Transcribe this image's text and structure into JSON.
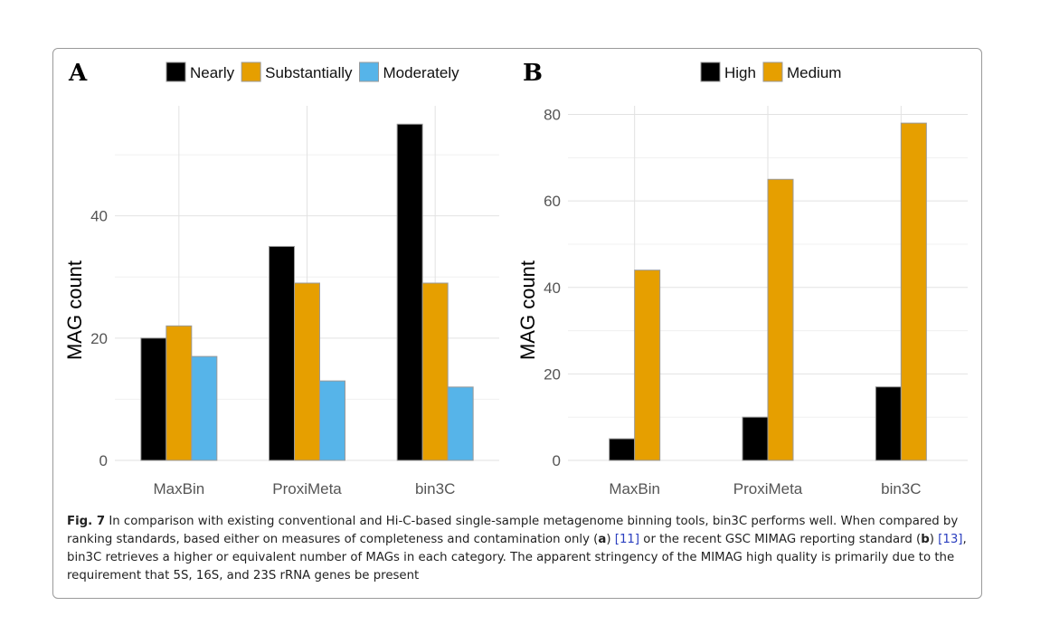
{
  "chart_data": [
    {
      "type": "bar",
      "panel_label": "A",
      "categories": [
        "MaxBin",
        "ProxiMeta",
        "bin3C"
      ],
      "series": [
        {
          "name": "Nearly",
          "color": "#000000",
          "values": [
            20,
            35,
            55
          ]
        },
        {
          "name": "Substantially",
          "color": "#E69F00",
          "values": [
            22,
            29,
            29
          ]
        },
        {
          "name": "Moderately",
          "color": "#56B4E9",
          "values": [
            17,
            13,
            12
          ]
        }
      ],
      "ylabel": "MAG count",
      "ylim": [
        0,
        58
      ],
      "yticks": [
        0,
        20,
        40
      ],
      "legend_position": "top",
      "grid": true
    },
    {
      "type": "bar",
      "panel_label": "B",
      "categories": [
        "MaxBin",
        "ProxiMeta",
        "bin3C"
      ],
      "series": [
        {
          "name": "High",
          "color": "#000000",
          "values": [
            5,
            10,
            17
          ]
        },
        {
          "name": "Medium",
          "color": "#E69F00",
          "values": [
            44,
            65,
            78
          ]
        }
      ],
      "ylabel": "MAG count",
      "ylim": [
        0,
        82
      ],
      "yticks": [
        0,
        20,
        40,
        60,
        80
      ],
      "legend_position": "top",
      "grid": true
    }
  ],
  "caption": {
    "fig_label": "Fig. 7",
    "part1": " In comparison with existing conventional and Hi-C-based single-sample metagenome binning tools, bin3C performs well. When compared by ranking standards, based either on measures of completeness and contamination only (",
    "a": "a",
    "part2": ") ",
    "ref1": "[11]",
    "part3": " or the recent GSC MIMAG reporting standard (",
    "b": "b",
    "part4": ") ",
    "ref2": "[13]",
    "part5": ", bin3C retrieves a higher or equivalent number of MAGs in each category. The apparent stringency of the MIMAG high quality is primarily due to the requirement that 5S, 16S, and 23S rRNA genes be present"
  }
}
